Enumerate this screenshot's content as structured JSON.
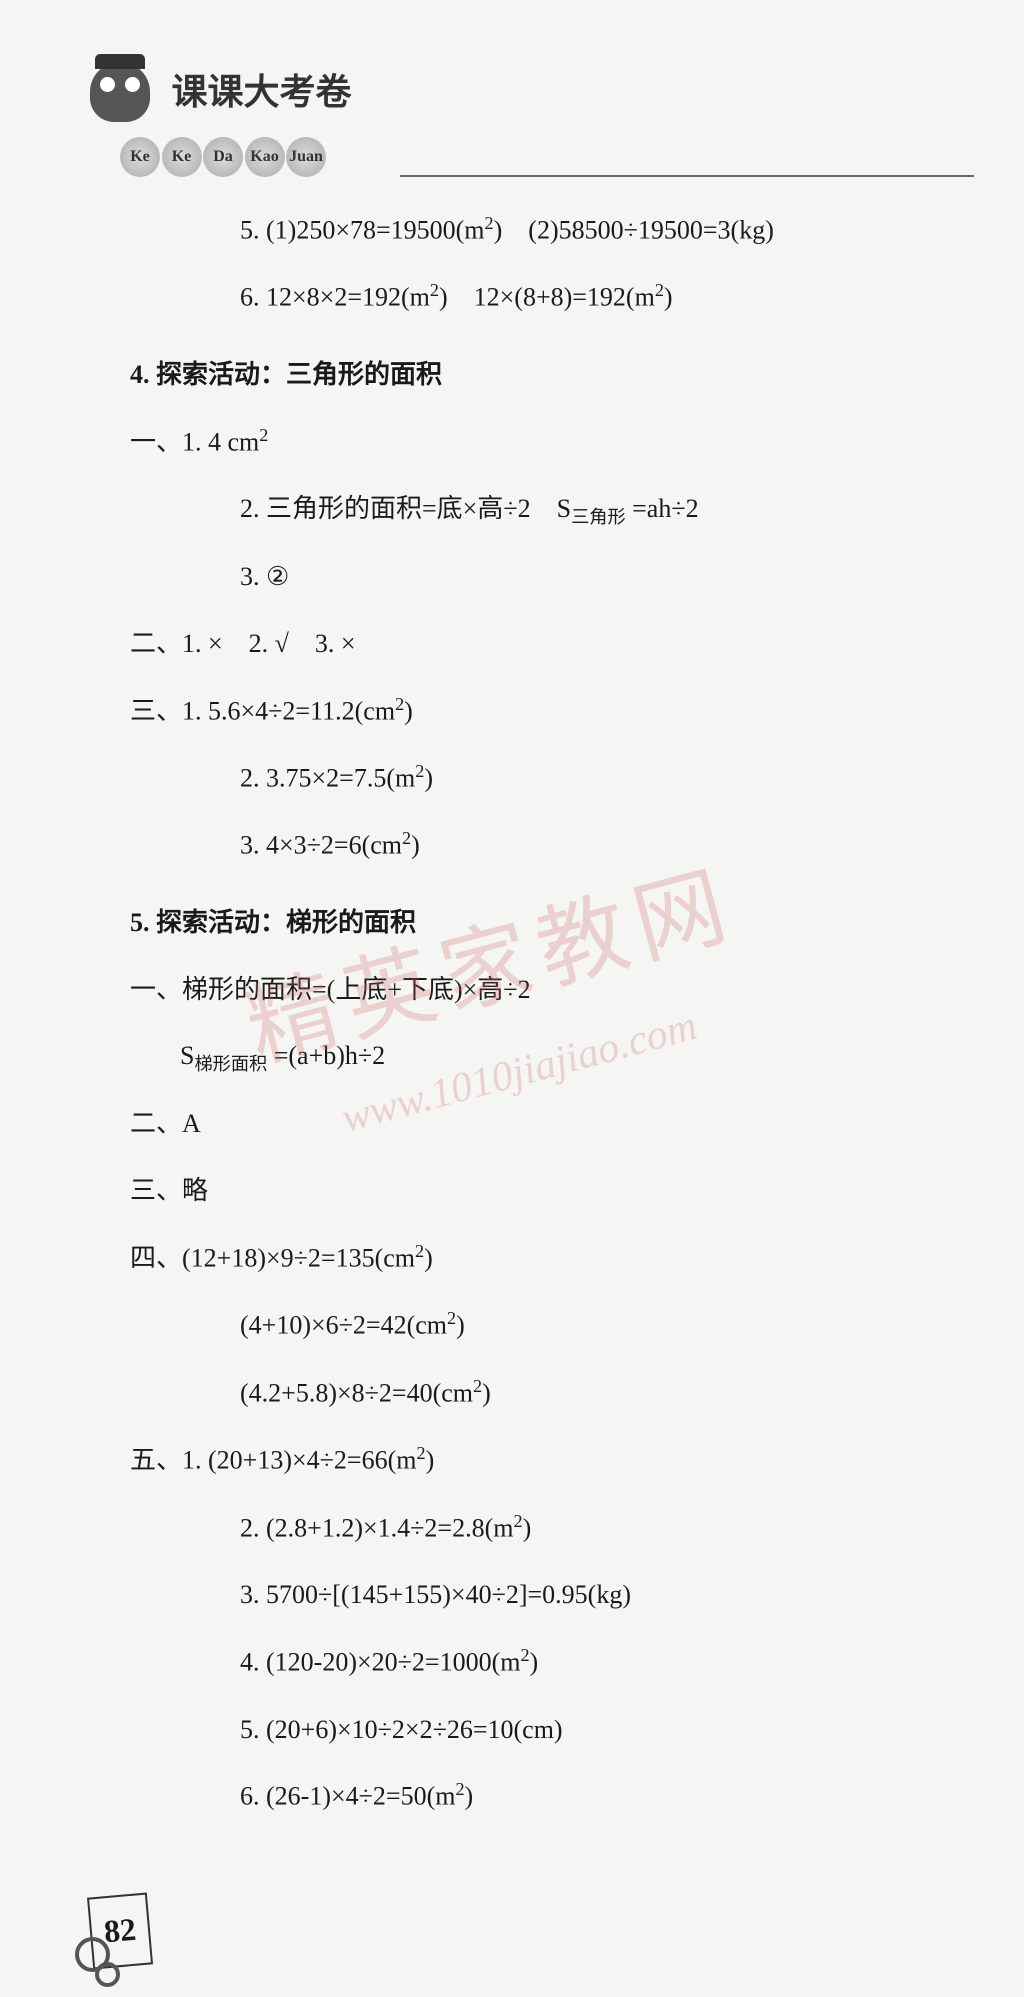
{
  "header": {
    "title": "课课大考卷",
    "pinyin": [
      "Ke",
      "Ke",
      "Da",
      "Kao",
      "Juan"
    ]
  },
  "lines": [
    {
      "class": "indent-2",
      "text": "5. (1)250×78=19500(m²) (2)58500÷19500=3(kg)"
    },
    {
      "class": "indent-2",
      "text": "6. 12×8×2=192(m²) 12×(8+8)=192(m²)"
    },
    {
      "class": "section-title",
      "text": "4. 探索活动：三角形的面积"
    },
    {
      "class": "indent-0",
      "text": "一、1. 4 cm²"
    },
    {
      "class": "indent-2",
      "text": "2. 三角形的面积=底×高÷2 S三角形 =ah÷2"
    },
    {
      "class": "indent-2",
      "text": "3. ②"
    },
    {
      "class": "indent-0",
      "text": "二、1. × 2. √ 3. ×"
    },
    {
      "class": "indent-0",
      "text": "三、1. 5.6×4÷2=11.2(cm²)"
    },
    {
      "class": "indent-2",
      "text": "2. 3.75×2=7.5(m²)"
    },
    {
      "class": "indent-2",
      "text": "3. 4×3÷2=6(cm²)"
    },
    {
      "class": "section-title",
      "text": "5. 探索活动：梯形的面积"
    },
    {
      "class": "indent-0",
      "text": "一、梯形的面积=(上底+下底)×高÷2"
    },
    {
      "class": "indent-1",
      "text": "S梯形面积 =(a+b)h÷2"
    },
    {
      "class": "indent-0",
      "text": "二、A"
    },
    {
      "class": "indent-0",
      "text": "三、略"
    },
    {
      "class": "indent-0",
      "text": "四、(12+18)×9÷2=135(cm²)"
    },
    {
      "class": "indent-2",
      "text": "(4+10)×6÷2=42(cm²)"
    },
    {
      "class": "indent-2",
      "text": "(4.2+5.8)×8÷2=40(cm²)"
    },
    {
      "class": "indent-0",
      "text": "五、1. (20+13)×4÷2=66(m²)"
    },
    {
      "class": "indent-2",
      "text": "2. (2.8+1.2)×1.4÷2=2.8(m²)"
    },
    {
      "class": "indent-2",
      "text": "3. 5700÷[(145+155)×40÷2]=0.95(kg)"
    },
    {
      "class": "indent-2",
      "text": "4. (120-20)×20÷2=1000(m²)"
    },
    {
      "class": "indent-2",
      "text": "5. (20+6)×10÷2×2÷26=10(cm)"
    },
    {
      "class": "indent-2",
      "text": "6. (26-1)×4÷2=50(m²)"
    }
  ],
  "watermark": {
    "line1": "精英家教网",
    "line2": "www.1010jiajiao.com"
  },
  "pageNumber": "82",
  "styling": {
    "backgroundColor": "#f5f5f3",
    "textColor": "#1a1a1a",
    "fontSize": 26,
    "watermarkColor": "#cc6666",
    "pageWidth": 1024,
    "pageHeight": 1997
  }
}
